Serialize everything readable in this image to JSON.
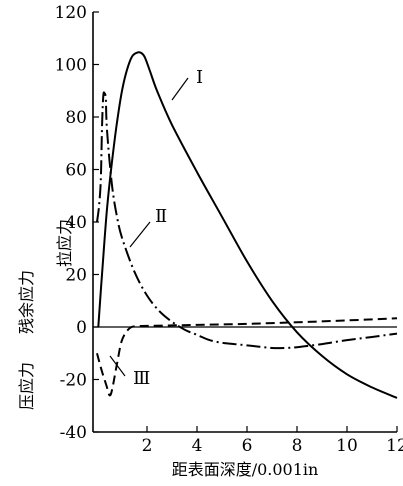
{
  "chart_data": {
    "type": "line",
    "xlabel": "距表面深度/0.001in",
    "ylabel": "残余应力",
    "ylabel_top": "拉应力",
    "ylabel_bottom": "压应力",
    "xlim": [
      -0.3,
      12
    ],
    "ylim": [
      -40,
      120
    ],
    "xticks": [
      2,
      4,
      6,
      8,
      10,
      12
    ],
    "yticks": [
      -40,
      -20,
      0,
      20,
      40,
      60,
      80,
      100,
      120
    ],
    "grid": false,
    "series": [
      {
        "name": "Ⅰ",
        "style": "solid",
        "x": [
          0.05,
          0.2,
          0.4,
          0.6,
          0.8,
          1.0,
          1.2,
          1.4,
          1.6,
          1.75,
          1.9,
          2.1,
          2.4,
          3.0,
          4.0,
          5.0,
          6.0,
          7.0,
          8.0,
          9.0,
          10.0,
          11.0,
          12.0
        ],
        "y": [
          0,
          20,
          45,
          63,
          78,
          90,
          98,
          103,
          104.5,
          104.5,
          103,
          98,
          90,
          77,
          59,
          42,
          25,
          10,
          -2,
          -11,
          -18,
          -23,
          -27
        ]
      },
      {
        "name": "Ⅱ",
        "style": "dashdot",
        "x": [
          0.0,
          0.08,
          0.15,
          0.2,
          0.25,
          0.3,
          0.35,
          0.4,
          0.6,
          0.8,
          1.0,
          1.5,
          2.0,
          2.5,
          3.0,
          3.5,
          4.0,
          4.5,
          5.0,
          5.5,
          6.0,
          6.5,
          7.0,
          7.5,
          8.0,
          9.0,
          10.0,
          11.0,
          12.0
        ],
        "y": [
          40,
          46,
          56,
          76,
          88,
          89,
          87,
          75,
          54,
          42,
          34,
          21,
          12,
          6,
          2,
          -1,
          -3,
          -5,
          -6,
          -6.5,
          -7,
          -7.5,
          -8,
          -8,
          -7.7,
          -6.5,
          -5,
          -3.8,
          -2.5
        ]
      },
      {
        "name": "Ⅲ",
        "style": "dashed",
        "x": [
          0.0,
          0.2,
          0.4,
          0.5,
          0.6,
          0.8,
          1.0,
          1.3,
          1.6,
          2.0,
          3.0,
          4.0,
          6.0,
          8.0,
          10.0,
          12.0
        ],
        "y": [
          -10,
          -17,
          -23,
          -26,
          -24,
          -14,
          -5,
          -0.5,
          0.3,
          0.4,
          0.6,
          0.8,
          1.2,
          1.8,
          2.5,
          3.3
        ]
      }
    ]
  }
}
